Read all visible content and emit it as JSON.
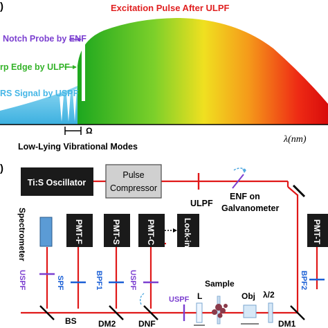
{
  "panel_a": {
    "panel_label": ")",
    "pulse_title": "Excitation Pulse After ULPF",
    "notch_label": "Notch Probe by ENF",
    "edge_label": "rp Edge by ULPF",
    "signal_label": "RS Signal by USPF",
    "omega": "Ω",
    "lambda_label": "λ(nm)",
    "modes_label": "Low-Lying Vibrational Modes",
    "colors": {
      "notch": "#7b3fd0",
      "edge": "#35b32a",
      "signal": "#45b6e6",
      "title": "#e02020"
    }
  },
  "panel_b": {
    "panel_label": ")",
    "oscillator": "Ti:S Oscillator",
    "compressor_l1": "Pulse",
    "compressor_l2": "Compressor",
    "ulpf_top": "ULPF",
    "enf_l1": "ENF on",
    "enf_l2": "Galvanometer",
    "spectrometer": "Spectrometer",
    "pmt_f": "PMT-F",
    "pmt_s": "PMT-S",
    "pmt_c": "PMT-C",
    "lockin": "Lock-in",
    "pmt_t": "PMT-T",
    "uspf_left": "USPF",
    "spf": "SPF",
    "bpf1": "BPF1",
    "uspf_mid": "USPF",
    "uspf_right": "USPF",
    "bpf2": "BPF2",
    "bs": "BS",
    "dm2": "DM2",
    "dnf": "DNF",
    "l": "L",
    "sample": "Sample",
    "obj": "Obj",
    "halfwave": "λ/2",
    "dm1": "DM1",
    "colors": {
      "beam": "#e01818",
      "filter": "#1a5fd6",
      "uspf": "#7b3fd0",
      "box": "#000000",
      "spectrometer": "#5b9bd5"
    }
  }
}
